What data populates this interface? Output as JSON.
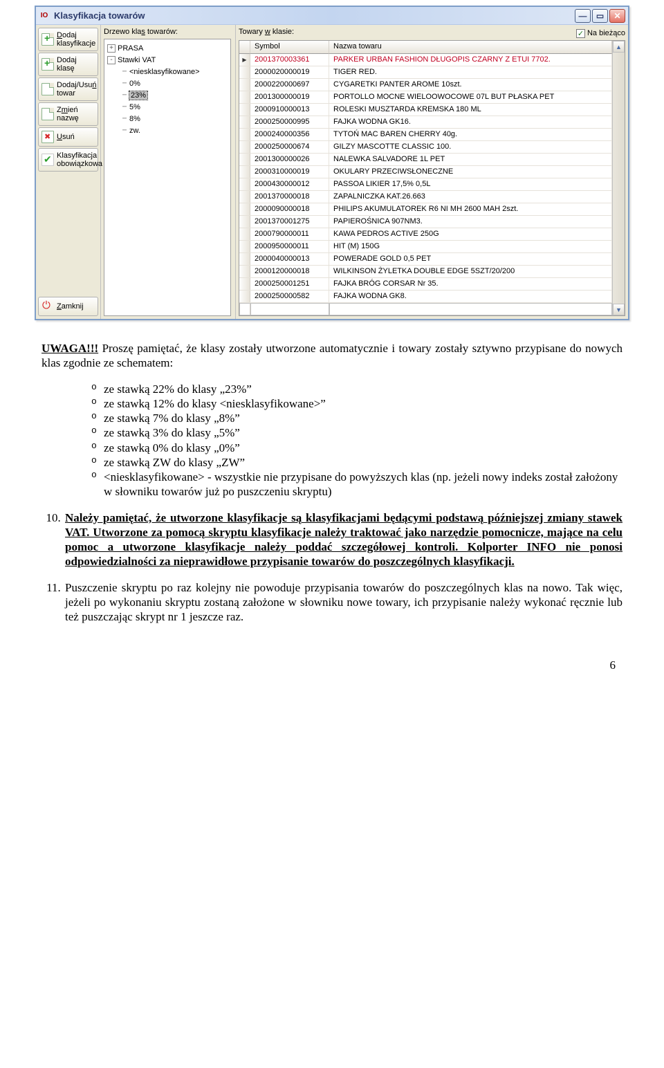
{
  "window": {
    "title": "Klasyfikacja towarów",
    "app_icon": "IO"
  },
  "sidebar": {
    "add_class_group": "Dodaj klasyfikacje",
    "add_class": "Dodaj klasę",
    "add_remove_item": "Dodaj/Usuń towar",
    "rename": "Zmień nazwę",
    "delete": "Usuń",
    "mandatory_class": "Klasyfikacja obowiązkowa",
    "close": "Zamknij"
  },
  "tree": {
    "label": "Drzewo klas towarów:",
    "items": [
      {
        "indent": 0,
        "toggle": "+",
        "text": "PRASA"
      },
      {
        "indent": 0,
        "toggle": "-",
        "text": "Stawki VAT"
      },
      {
        "indent": 1,
        "line": true,
        "text": "<niesklasyfikowane>"
      },
      {
        "indent": 1,
        "line": true,
        "text": "0%"
      },
      {
        "indent": 1,
        "line": true,
        "text": "23%",
        "selected": true
      },
      {
        "indent": 1,
        "line": true,
        "text": "5%"
      },
      {
        "indent": 1,
        "line": true,
        "text": "8%"
      },
      {
        "indent": 1,
        "line": true,
        "text": "zw."
      }
    ]
  },
  "grid": {
    "label": "Towary w klasie:",
    "live_checkbox": "Na bieżąco",
    "columns": {
      "symbol": "Symbol",
      "name": "Nazwa towaru"
    },
    "rows": [
      {
        "symbol": "2001370003361",
        "name": "PARKER URBAN FASHION DŁUGOPIS CZARNY Z ETUI 7702.",
        "sel": true
      },
      {
        "symbol": "2000020000019",
        "name": "TIGER RED."
      },
      {
        "symbol": "2000220000697",
        "name": "CYGARETKI PANTER AROME 10szt."
      },
      {
        "symbol": "2001300000019",
        "name": "PORTOLLO MOCNE WIELOOWOCOWE 07L BUT PŁASKA PET"
      },
      {
        "symbol": "2000910000013",
        "name": "ROLESKI MUSZTARDA KREMSKA 180 ML"
      },
      {
        "symbol": "2000250000995",
        "name": "FAJKA WODNA GK16."
      },
      {
        "symbol": "2000240000356",
        "name": "TYTOŃ MAC BAREN CHERRY 40g."
      },
      {
        "symbol": "2000250000674",
        "name": "GILZY MASCOTTE CLASSIC 100."
      },
      {
        "symbol": "2001300000026",
        "name": "NALEWKA SALVADORE 1L PET"
      },
      {
        "symbol": "2000310000019",
        "name": "OKULARY PRZECIWSŁONECZNE"
      },
      {
        "symbol": "2000430000012",
        "name": "PASSOA LIKIER 17,5% 0,5L"
      },
      {
        "symbol": "2001370000018",
        "name": "ZAPALNICZKA KAT.26.663"
      },
      {
        "symbol": "2000090000018",
        "name": "PHILIPS AKUMULATOREK R6 NI MH 2600 MAH 2szt."
      },
      {
        "symbol": "2001370001275",
        "name": "PAPIEROŚNICA 907NM3."
      },
      {
        "symbol": "2000790000011",
        "name": "KAWA PEDROS ACTIVE 250G"
      },
      {
        "symbol": "2000950000011",
        "name": "HIT  (M) 150G"
      },
      {
        "symbol": "2000040000013",
        "name": "POWERADE GOLD 0,5 PET"
      },
      {
        "symbol": "2000120000018",
        "name": "WILKINSON ŻYLETKA DOUBLE EDGE 5SZT/20/200"
      },
      {
        "symbol": "2000250001251",
        "name": "FAJKA BRÓG CORSAR Nr 35."
      },
      {
        "symbol": "2000250000582",
        "name": "FAJKA WODNA GK8."
      }
    ]
  },
  "doc": {
    "para1_lead": "UWAGA!!!",
    "para1_rest": " Proszę pamiętać, że klasy zostały utworzone automatycznie i towary zostały sztywno przypisane do nowych klas zgodnie ze schematem:",
    "bullets": [
      "ze stawką 22% do klasy „23%”",
      "ze stawką 12% do klasy <niesklasyfikowane>”",
      "ze stawką 7% do klasy „8%”",
      "ze stawką 3% do klasy „5%”",
      "ze stawką 0% do klasy „0%”",
      "ze stawką ZW do klasy „ZW”",
      "<niesklasyfikowane> - wszystkie nie przypisane do powyższych klas (np. jeżeli nowy indeks został założony w słowniku towarów już po puszczeniu skryptu)"
    ],
    "li10_a": "Należy pamiętać, że utworzone klasyfikacje są klasyfikacjami będącymi podstawą późniejszej zmiany stawek VAT. Utworzone za pomocą skryptu klasyfikacje należy traktować jako narzędzie pomocnicze, mające na celu pomoc a utworzone klasyfikacje należy poddać szczegółowej kontroli. Kolporter INFO nie ponosi odpowiedzialności za nieprawidłowe przypisanie towarów do poszczególnych klasyfikacji.",
    "li11": "Puszczenie skryptu po raz kolejny nie powoduje przypisania towarów do poszczególnych klas na nowo. Tak więc, jeżeli po wykonaniu skryptu zostaną założone w słowniku nowe towary, ich przypisanie należy wykonać ręcznie lub też puszczając skrypt nr 1 jeszcze raz.",
    "pagenum": "6"
  }
}
